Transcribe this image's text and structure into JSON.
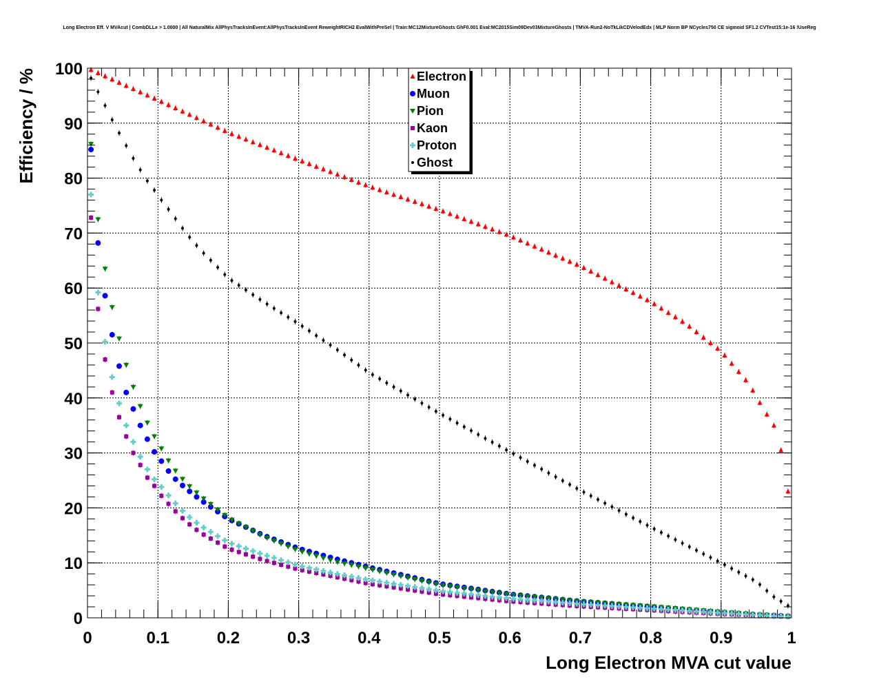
{
  "chart_data": {
    "type": "scatter",
    "title": "Long Electron Eff. V MVAcut | CombDLLe > 1.0000 | All NaturalMix AllPhysTracksInEvent:AllPhysTracksInEvent ReweightRICH2 EvalWithPreSel | Train:MC12MixtureGhosts GhF0.001 Eval:MC2015Sim09Dev03MixtureGhosts | TMVA-Run2-NoTkLikCDVelodEdx | MLP Norm BP NCycles750 CE sigmoid SF1.2 CVTest15:1e-16 !UseReg",
    "xlabel": "Long Electron MVA cut value",
    "ylabel": "Efficiency / %",
    "xlim": [
      0,
      1
    ],
    "ylim": [
      0,
      100
    ],
    "xticks": [
      "0",
      "0.1",
      "0.2",
      "0.3",
      "0.4",
      "0.5",
      "0.6",
      "0.7",
      "0.8",
      "0.9",
      "1"
    ],
    "yticks": [
      "0",
      "10",
      "20",
      "30",
      "40",
      "50",
      "60",
      "70",
      "80",
      "90",
      "100"
    ],
    "grid": true,
    "legend_position": "top-center",
    "series": [
      {
        "name": "Electron",
        "marker": "triangle-up",
        "color": "#ff0000",
        "x": [
          0.005,
          0.1,
          0.2,
          0.3,
          0.4,
          0.5,
          0.6,
          0.7,
          0.8,
          0.85,
          0.9,
          0.92,
          0.94,
          0.96,
          0.975,
          0.985,
          0.995
        ],
        "y": [
          99.7,
          94.2,
          88.3,
          83.3,
          78.5,
          74.2,
          69.5,
          64,
          57.5,
          53.5,
          48.5,
          45.5,
          42.5,
          38,
          35,
          30.5,
          23
        ]
      },
      {
        "name": "Muon",
        "marker": "circle",
        "color": "#0000ff",
        "x": [
          0.005,
          0.015,
          0.025,
          0.035,
          0.045,
          0.055,
          0.065,
          0.075,
          0.085,
          0.095,
          0.105,
          0.12,
          0.14,
          0.16,
          0.2,
          0.25,
          0.3,
          0.35,
          0.4,
          0.5,
          0.6,
          0.7,
          0.8,
          0.9,
          0.95,
          0.995
        ],
        "y": [
          85.2,
          68.2,
          58.6,
          51.5,
          45.8,
          41,
          38,
          35,
          32.5,
          30.2,
          28.5,
          25.8,
          23.5,
          21.5,
          18,
          15,
          12.6,
          10.8,
          9.2,
          6.2,
          4.3,
          3,
          2,
          1,
          0.6,
          0.3
        ]
      },
      {
        "name": "Pion",
        "marker": "triangle-down",
        "color": "#008000",
        "x": [
          0.005,
          0.015,
          0.025,
          0.035,
          0.045,
          0.055,
          0.065,
          0.075,
          0.085,
          0.095,
          0.105,
          0.12,
          0.14,
          0.16,
          0.2,
          0.25,
          0.3,
          0.35,
          0.4,
          0.5,
          0.6,
          0.7,
          0.8,
          0.9,
          0.95,
          0.995
        ],
        "y": [
          86.2,
          72.5,
          63.5,
          56.5,
          50.8,
          46,
          42,
          38.5,
          35.5,
          33,
          30.8,
          27.5,
          24.5,
          22.2,
          18.2,
          14.8,
          12.2,
          10.3,
          8.9,
          6,
          4.2,
          3,
          2.1,
          1.1,
          0.6,
          0.3
        ]
      },
      {
        "name": "Kaon",
        "marker": "square",
        "color": "#990099",
        "x": [
          0.005,
          0.015,
          0.025,
          0.035,
          0.045,
          0.055,
          0.065,
          0.075,
          0.085,
          0.095,
          0.105,
          0.12,
          0.14,
          0.16,
          0.2,
          0.25,
          0.3,
          0.35,
          0.4,
          0.5,
          0.6,
          0.7,
          0.8,
          0.9,
          0.95,
          0.995
        ],
        "y": [
          72.8,
          56.2,
          47,
          41,
          36.5,
          33,
          30,
          27.8,
          25.5,
          24,
          22.2,
          20,
          17.5,
          15.5,
          12.6,
          10.5,
          8.8,
          7.5,
          6.2,
          4.3,
          3,
          2.1,
          1.4,
          0.7,
          0.4,
          0.2
        ]
      },
      {
        "name": "Proton",
        "marker": "cross",
        "color": "#66cccc",
        "x": [
          0.005,
          0.015,
          0.025,
          0.035,
          0.045,
          0.055,
          0.065,
          0.075,
          0.085,
          0.095,
          0.105,
          0.12,
          0.14,
          0.16,
          0.2,
          0.25,
          0.3,
          0.35,
          0.4,
          0.5,
          0.6,
          0.7,
          0.8,
          0.9,
          0.95,
          0.995
        ],
        "y": [
          77,
          59.2,
          50.2,
          43.8,
          39,
          35,
          32,
          29.3,
          27,
          25.2,
          23.8,
          21.5,
          18.8,
          16.8,
          13.7,
          11.5,
          9.5,
          8.1,
          6.9,
          4.9,
          3.5,
          2.5,
          1.7,
          0.9,
          0.5,
          0.2
        ]
      },
      {
        "name": "Ghost",
        "marker": "dot",
        "color": "#000000",
        "x": [
          0.005,
          0.015,
          0.025,
          0.035,
          0.045,
          0.055,
          0.065,
          0.075,
          0.085,
          0.095,
          0.105,
          0.12,
          0.14,
          0.16,
          0.2,
          0.25,
          0.3,
          0.35,
          0.4,
          0.5,
          0.6,
          0.7,
          0.8,
          0.9,
          0.95,
          0.975,
          0.995
        ],
        "y": [
          98.2,
          95.7,
          93.2,
          90.6,
          88.2,
          85.9,
          83.6,
          81.5,
          79.5,
          77.8,
          76,
          73.5,
          70,
          67,
          61.8,
          57.5,
          53.5,
          49.2,
          44.6,
          37.2,
          30.2,
          23.2,
          16.5,
          10,
          6.6,
          3.8,
          2.2
        ]
      }
    ]
  }
}
